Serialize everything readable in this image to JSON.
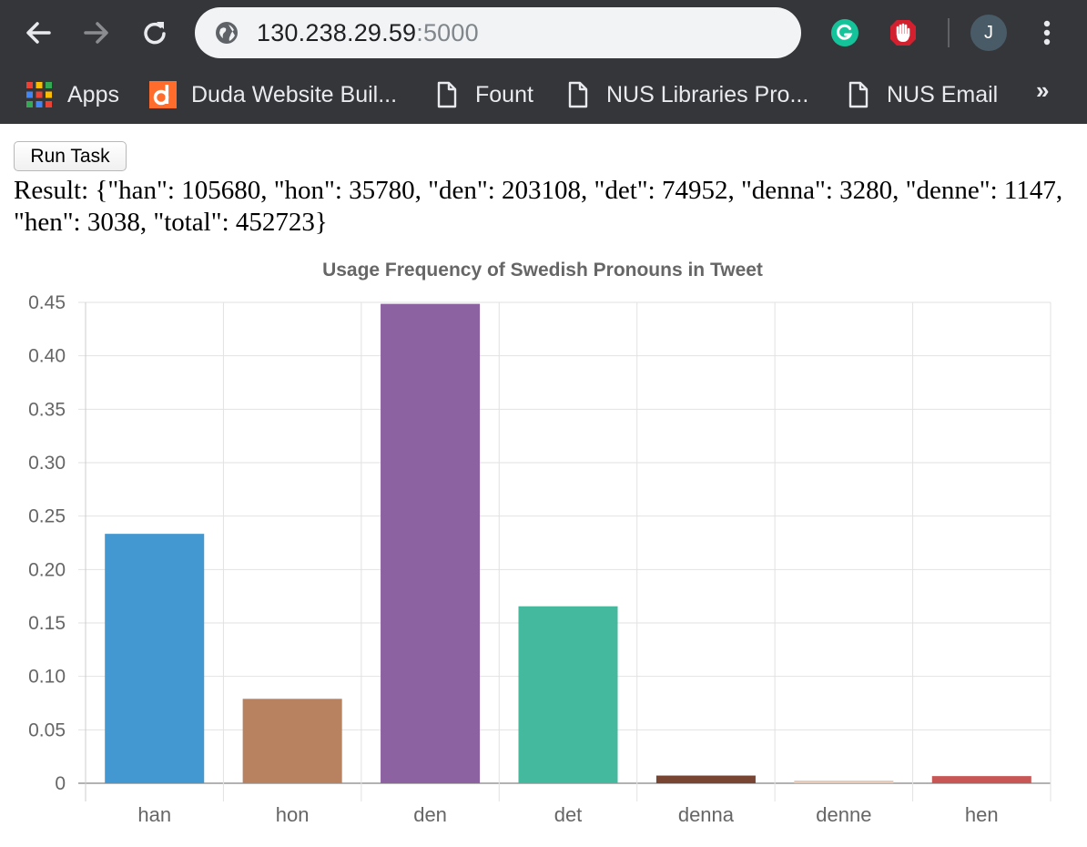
{
  "browser": {
    "url_host": "130.238.29.59",
    "url_port": ":5000",
    "avatar_letter": "J",
    "bookmarks": [
      {
        "label": "Apps",
        "icon": "apps-grid-icon"
      },
      {
        "label": "Duda Website Buil...",
        "icon": "duda-logo-icon"
      },
      {
        "label": "Fount",
        "icon": "page-icon"
      },
      {
        "label": "NUS Libraries Pro...",
        "icon": "page-icon"
      },
      {
        "label": "NUS Email",
        "icon": "page-icon"
      }
    ],
    "more_label": "»"
  },
  "page": {
    "run_button_label": "Run Task",
    "result_text": "Result: {\"han\": 105680, \"hon\": 35780, \"den\": 203108, \"det\": 74952, \"denna\": 3280, \"denne\": 1147, \"hen\": 3038, \"total\": 452723}"
  },
  "chart_data": {
    "type": "bar",
    "title": "Usage Frequency of Swedish Pronouns in Tweet",
    "categories": [
      "han",
      "hon",
      "den",
      "det",
      "denna",
      "denne",
      "hen"
    ],
    "values": [
      0.2334,
      0.079,
      0.4486,
      0.1656,
      0.0072,
      0.0025,
      0.0067
    ],
    "colors": [
      "#4398d2",
      "#b88160",
      "#8d62a0",
      "#45b99e",
      "#774532",
      "#e8c9b6",
      "#c85654"
    ],
    "ylim": [
      0,
      0.45
    ],
    "yticks": [
      "0",
      "0.05",
      "0.10",
      "0.15",
      "0.20",
      "0.25",
      "0.30",
      "0.35",
      "0.40",
      "0.45"
    ],
    "grid": true
  }
}
